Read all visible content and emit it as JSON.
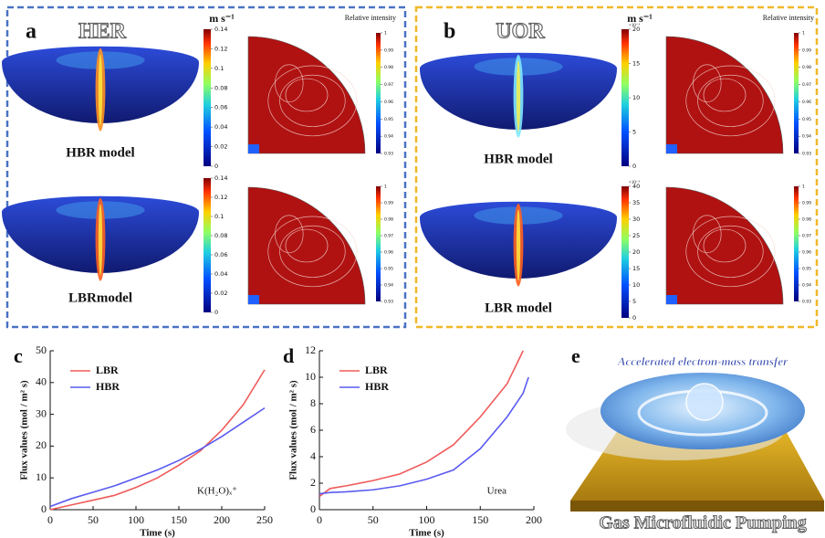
{
  "chart_data": [
    {
      "type": "line",
      "label": "c",
      "xlabel": "Time (s)",
      "ylabel": "Flux values (mol / m² s)",
      "annotation": "K(H₂O)ₓ⁺",
      "x": [
        0,
        25,
        50,
        75,
        100,
        125,
        150,
        175,
        200,
        225,
        250
      ],
      "series": [
        {
          "name": "LBR",
          "color": "#f05a5a",
          "values": [
            0,
            1.5,
            3,
            4.5,
            7,
            10,
            14,
            18.5,
            25,
            33,
            44
          ]
        },
        {
          "name": "HBR",
          "color": "#5a5af0",
          "values": [
            1,
            3.5,
            5.5,
            7.5,
            10,
            12.5,
            15.5,
            19,
            23,
            27.5,
            32
          ]
        }
      ],
      "xlim": [
        0,
        250
      ],
      "xticks": [
        0,
        50,
        100,
        150,
        200,
        250
      ],
      "ylim": [
        0,
        50
      ],
      "yticks": [
        0,
        10,
        20,
        30,
        40,
        50
      ],
      "legend": "upper left"
    },
    {
      "type": "line",
      "label": "d",
      "xlabel": "Time (s)",
      "ylabel": "Flux values (mol / m² s)",
      "annotation": "Urea",
      "x": [
        0,
        10,
        25,
        50,
        75,
        100,
        125,
        150,
        175,
        190,
        195
      ],
      "series": [
        {
          "name": "LBR",
          "color": "#f05a5a",
          "values": [
            1,
            1.6,
            1.8,
            2.2,
            2.7,
            3.6,
            4.9,
            7,
            9.5,
            12,
            null
          ]
        },
        {
          "name": "HBR",
          "color": "#5a5af0",
          "values": [
            1.2,
            1.3,
            1.35,
            1.5,
            1.8,
            2.3,
            3,
            4.6,
            7,
            8.8,
            10
          ]
        }
      ],
      "xlim": [
        0,
        200
      ],
      "xticks": [
        0,
        50,
        100,
        150,
        200
      ],
      "ylim": [
        0,
        12
      ],
      "yticks": [
        0,
        2,
        4,
        6,
        8,
        10,
        12
      ],
      "legend": "upper left"
    }
  ],
  "panel_a": {
    "label": "a",
    "title": "HER",
    "unit": "m s⁻¹",
    "intensity_title": "Relative intensity",
    "velocity_ticks": [
      0,
      0.02,
      0.04,
      0.06,
      0.08,
      0.1,
      0.12,
      0.14
    ],
    "intensity_ticks": [
      0.93,
      0.94,
      0.95,
      0.96,
      0.97,
      0.98,
      0.99,
      1
    ],
    "models": [
      "HBR model",
      "LBRmodel"
    ]
  },
  "panel_b": {
    "label": "b",
    "title": "UOR",
    "unit": "m s⁻¹",
    "intensity_title": "Relative intensity",
    "velocity_ticks_top": [
      0,
      5,
      10,
      15,
      20
    ],
    "velocity_ticks_bottom": [
      0,
      5,
      10,
      15,
      20,
      25,
      30,
      35,
      40
    ],
    "exponent": "×10⁻³",
    "intensity_ticks": [
      0.93,
      0.94,
      0.95,
      0.96,
      0.97,
      0.98,
      0.99,
      1
    ],
    "models": [
      "HBR model",
      "LBR model"
    ]
  },
  "panel_e": {
    "label": "e",
    "caption_top": "Accelerated electron-mass transfer",
    "caption_bottom": "Gas Microfluidic Pumping"
  }
}
